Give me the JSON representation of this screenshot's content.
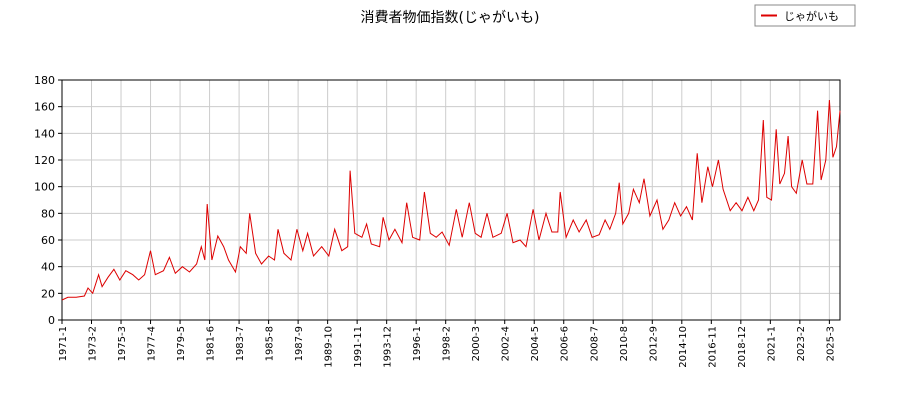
{
  "chart_data": {
    "type": "line",
    "title": "消費者物価指数(じゃがいも)",
    "x": [
      "1971-1",
      "1971-6",
      "1972-1",
      "1972-8",
      "1972-11",
      "1973-3",
      "1973-8",
      "1973-11",
      "1974-4",
      "1974-9",
      "1975-2",
      "1975-7",
      "1976-1",
      "1976-6",
      "1976-11",
      "1977-4",
      "1977-8",
      "1978-3",
      "1978-8",
      "1979-1",
      "1979-7",
      "1980-1",
      "1980-7",
      "1980-11",
      "1981-2",
      "1981-4",
      "1981-8",
      "1982-1",
      "1982-6",
      "1982-10",
      "1983-4",
      "1983-8",
      "1984-1",
      "1984-4",
      "1984-9",
      "1985-2",
      "1985-8",
      "1986-1",
      "1986-4",
      "1986-9",
      "1987-3",
      "1987-8",
      "1988-1",
      "1988-5",
      "1988-10",
      "1989-5",
      "1989-11",
      "1990-4",
      "1990-10",
      "1991-3",
      "1991-5",
      "1991-9",
      "1992-3",
      "1992-7",
      "1992-11",
      "1993-6",
      "1993-9",
      "1994-2",
      "1994-7",
      "1995-1",
      "1995-5",
      "1995-10",
      "1996-4",
      "1996-8",
      "1997-1",
      "1997-6",
      "1997-11",
      "1998-5",
      "1998-11",
      "1999-4",
      "1999-10",
      "2000-3",
      "2000-8",
      "2001-1",
      "2001-6",
      "2002-1",
      "2002-6",
      "2002-11",
      "2003-5",
      "2003-10",
      "2004-4",
      "2004-9",
      "2005-3",
      "2005-8",
      "2006-1",
      "2006-3",
      "2006-8",
      "2007-2",
      "2007-7",
      "2008-1",
      "2008-6",
      "2008-12",
      "2009-5",
      "2009-9",
      "2010-2",
      "2010-5",
      "2010-8",
      "2011-1",
      "2011-5",
      "2011-10",
      "2012-2",
      "2012-7",
      "2013-1",
      "2013-6",
      "2013-11",
      "2014-4",
      "2014-9",
      "2015-2",
      "2015-7",
      "2015-11",
      "2016-3",
      "2016-8",
      "2016-12",
      "2017-5",
      "2017-9",
      "2018-3",
      "2018-8",
      "2019-1",
      "2019-6",
      "2019-11",
      "2020-3",
      "2020-7",
      "2020-10",
      "2021-2",
      "2021-6",
      "2021-9",
      "2022-1",
      "2022-4",
      "2022-7",
      "2022-11",
      "2023-4",
      "2023-8",
      "2024-1",
      "2024-5",
      "2024-8",
      "2024-12",
      "2025-3",
      "2025-6",
      "2025-9",
      "2025-12"
    ],
    "series": [
      {
        "name": "じゃがいも",
        "color": "#dd0000",
        "values": [
          15,
          17,
          17,
          18,
          24,
          20,
          34,
          25,
          32,
          38,
          30,
          37,
          34,
          30,
          34,
          52,
          34,
          37,
          47,
          35,
          40,
          36,
          42,
          55,
          45,
          87,
          45,
          63,
          55,
          45,
          36,
          55,
          50,
          80,
          50,
          42,
          48,
          45,
          68,
          50,
          45,
          68,
          52,
          65,
          48,
          55,
          48,
          68,
          52,
          55,
          112,
          65,
          62,
          72,
          57,
          55,
          77,
          60,
          68,
          58,
          88,
          62,
          60,
          96,
          65,
          62,
          66,
          56,
          83,
          62,
          88,
          65,
          62,
          80,
          62,
          65,
          80,
          58,
          60,
          55,
          83,
          60,
          80,
          66,
          66,
          96,
          62,
          75,
          66,
          75,
          62,
          64,
          75,
          68,
          80,
          103,
          72,
          80,
          98,
          88,
          106,
          78,
          90,
          68,
          75,
          88,
          78,
          85,
          75,
          125,
          88,
          115,
          100,
          120,
          98,
          82,
          88,
          82,
          92,
          82,
          90,
          150,
          92,
          90,
          143,
          102,
          110,
          138,
          100,
          95,
          120,
          102,
          102,
          157,
          105,
          120,
          165,
          122,
          130,
          157
        ]
      }
    ],
    "xlim": [
      "1971-1",
      "2025-12"
    ],
    "xticks": [
      "1971-1",
      "1973-2",
      "1975-3",
      "1977-4",
      "1979-5",
      "1981-6",
      "1983-7",
      "1985-8",
      "1987-9",
      "1989-10",
      "1991-11",
      "1993-12",
      "1996-1",
      "1998-2",
      "2000-3",
      "2002-4",
      "2004-5",
      "2006-6",
      "2008-7",
      "2010-8",
      "2012-9",
      "2014-10",
      "2016-11",
      "2018-12",
      "2021-1",
      "2023-2",
      "2025-3"
    ],
    "ylim": [
      0,
      180
    ],
    "yticks": [
      0,
      20,
      40,
      60,
      80,
      100,
      120,
      140,
      160,
      180
    ],
    "grid": true,
    "legend": "upper right"
  }
}
